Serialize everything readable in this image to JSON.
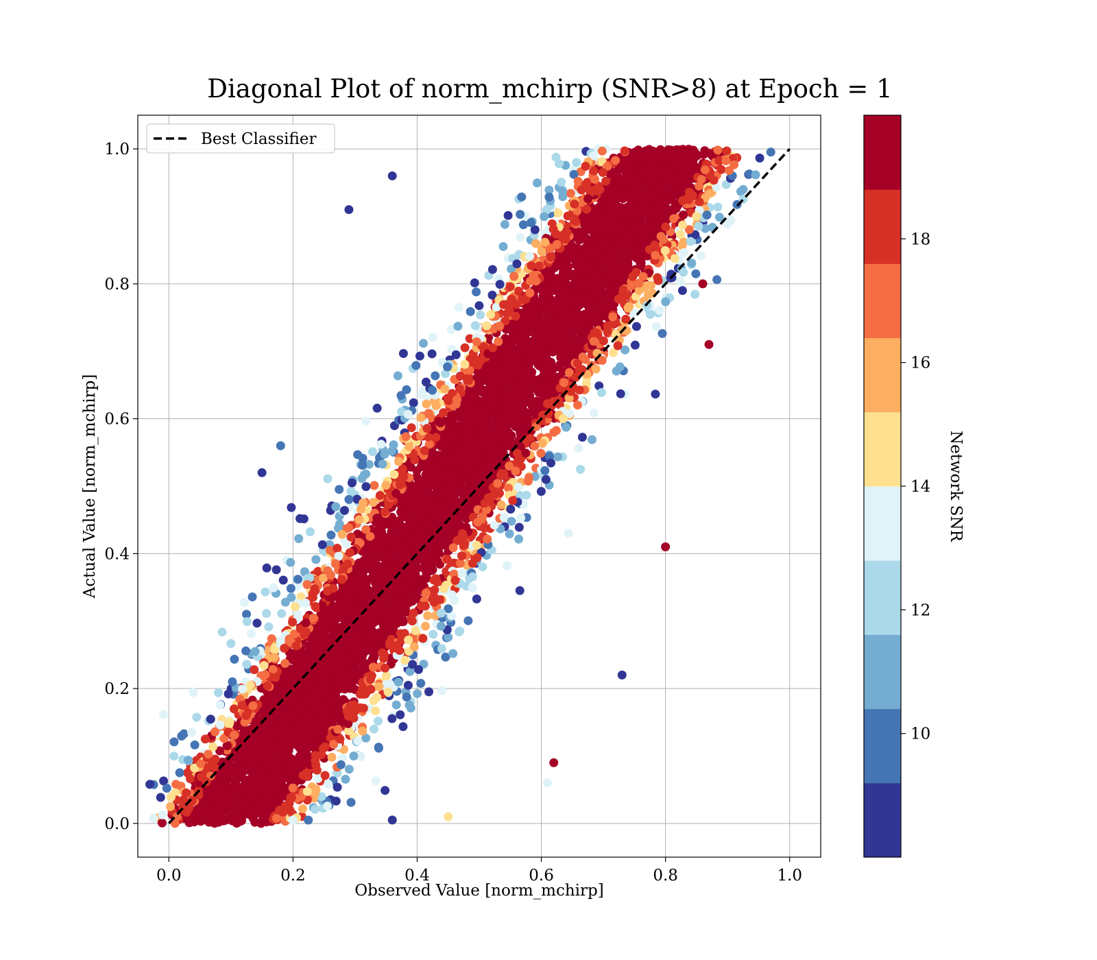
{
  "chart_data": {
    "type": "scatter",
    "title": "Diagonal Plot of norm_mchirp (SNR>8) at Epoch = 1",
    "xlabel": "Observed Value [norm_mchirp]",
    "ylabel": "Actual Value [norm_mchirp]",
    "xlim": [
      -0.05,
      1.05
    ],
    "ylim": [
      -0.05,
      1.05
    ],
    "xticks": [
      0.0,
      0.2,
      0.4,
      0.6,
      0.8,
      1.0
    ],
    "yticks": [
      0.0,
      0.2,
      0.4,
      0.6,
      0.8,
      1.0
    ],
    "xtick_labels": [
      "0.0",
      "0.2",
      "0.4",
      "0.6",
      "0.8",
      "1.0"
    ],
    "ytick_labels": [
      "0.0",
      "0.2",
      "0.4",
      "0.6",
      "0.8",
      "1.0"
    ],
    "grid": true,
    "legend": {
      "placement": "top-left",
      "entries": [
        {
          "label": "Best Classifier",
          "style": "dashed",
          "color": "#000000"
        }
      ]
    },
    "reference_line": {
      "x": [
        0.0,
        1.0
      ],
      "y": [
        0.0,
        1.0
      ],
      "style": "dashed",
      "color": "#000000"
    },
    "colorbar": {
      "label": "Network SNR",
      "range": [
        8,
        20
      ],
      "ticks": [
        10,
        12,
        14,
        16,
        18
      ],
      "tick_labels": [
        "10",
        "12",
        "14",
        "16",
        "18"
      ],
      "colormap": "RdYlBu_r",
      "colors": [
        "#313695",
        "#4575b4",
        "#74add1",
        "#abd9e9",
        "#e0f3f8",
        "#fee090",
        "#fdae61",
        "#f46d43",
        "#d73027",
        "#a50026"
      ]
    },
    "series": [
      {
        "color_by": "Network SNR",
        "points_description_values": {
          "bulk_region": "dense band along diagonal from (0.08, 0.0) to (0.82, 1.0)",
          "dominant_snr": 20
        },
        "sample_points": [
          {
            "x": 0.1,
            "y": 0.1,
            "snr": 20
          },
          {
            "x": 0.2,
            "y": 0.2,
            "snr": 20
          },
          {
            "x": 0.3,
            "y": 0.3,
            "snr": 20
          },
          {
            "x": 0.4,
            "y": 0.4,
            "snr": 20
          },
          {
            "x": 0.5,
            "y": 0.5,
            "snr": 20
          },
          {
            "x": 0.6,
            "y": 0.6,
            "snr": 20
          },
          {
            "x": 0.7,
            "y": 0.7,
            "snr": 20
          },
          {
            "x": 0.78,
            "y": 0.85,
            "snr": 20
          },
          {
            "x": 0.36,
            "y": 0.96,
            "snr": 8.5
          },
          {
            "x": 0.29,
            "y": 0.91,
            "snr": 8.5
          },
          {
            "x": 0.15,
            "y": 0.52,
            "snr": 8.5
          },
          {
            "x": 0.18,
            "y": 0.56,
            "snr": 10
          },
          {
            "x": 0.87,
            "y": 0.71,
            "snr": 19
          },
          {
            "x": 0.86,
            "y": 0.8,
            "snr": 19
          },
          {
            "x": 0.73,
            "y": 0.22,
            "snr": 9
          },
          {
            "x": 0.62,
            "y": 0.09,
            "snr": 19
          },
          {
            "x": 0.06,
            "y": 0.03,
            "snr": 19
          },
          {
            "x": 0.45,
            "y": 0.01,
            "snr": 14
          },
          {
            "x": 0.36,
            "y": 0.005,
            "snr": 9
          },
          {
            "x": 0.61,
            "y": 0.06,
            "snr": 13
          },
          {
            "x": 0.85,
            "y": 0.9,
            "snr": 14
          },
          {
            "x": 0.8,
            "y": 0.41,
            "snr": 19
          }
        ]
      }
    ]
  }
}
